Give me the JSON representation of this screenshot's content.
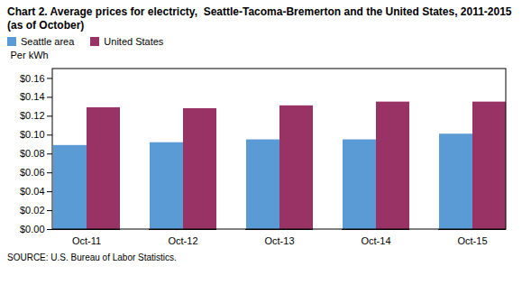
{
  "chart_data": {
    "type": "bar",
    "title": "Chart 2. Average prices for electricty,  Seattle-Tacoma-Bremerton and the United States, 2011-2015  (as of October)",
    "ylabel": "Per kWh",
    "source": "SOURCE: U.S. Bureau of Labor Statistics.",
    "categories": [
      "Oct-11",
      "Oct-12",
      "Oct-13",
      "Oct-14",
      "Oct-15"
    ],
    "series": [
      {
        "name": "Seattle area",
        "color": "#5B9BD5",
        "values": [
          0.089,
          0.092,
          0.095,
          0.095,
          0.101
        ]
      },
      {
        "name": "United States",
        "color": "#993366",
        "values": [
          0.129,
          0.128,
          0.131,
          0.135,
          0.135
        ]
      }
    ],
    "ylim": [
      0,
      0.17
    ],
    "yticks": [
      {
        "value": 0.0,
        "label": "$0.00"
      },
      {
        "value": 0.02,
        "label": "$0.02"
      },
      {
        "value": 0.04,
        "label": "$0.04"
      },
      {
        "value": 0.06,
        "label": "$0.06"
      },
      {
        "value": 0.08,
        "label": "$0.08"
      },
      {
        "value": 0.1,
        "label": "$0.10"
      },
      {
        "value": 0.12,
        "label": "$0.12"
      },
      {
        "value": 0.14,
        "label": "$0.14"
      },
      {
        "value": 0.16,
        "label": "$0.16"
      }
    ],
    "grid": false,
    "legend": "upper left"
  }
}
